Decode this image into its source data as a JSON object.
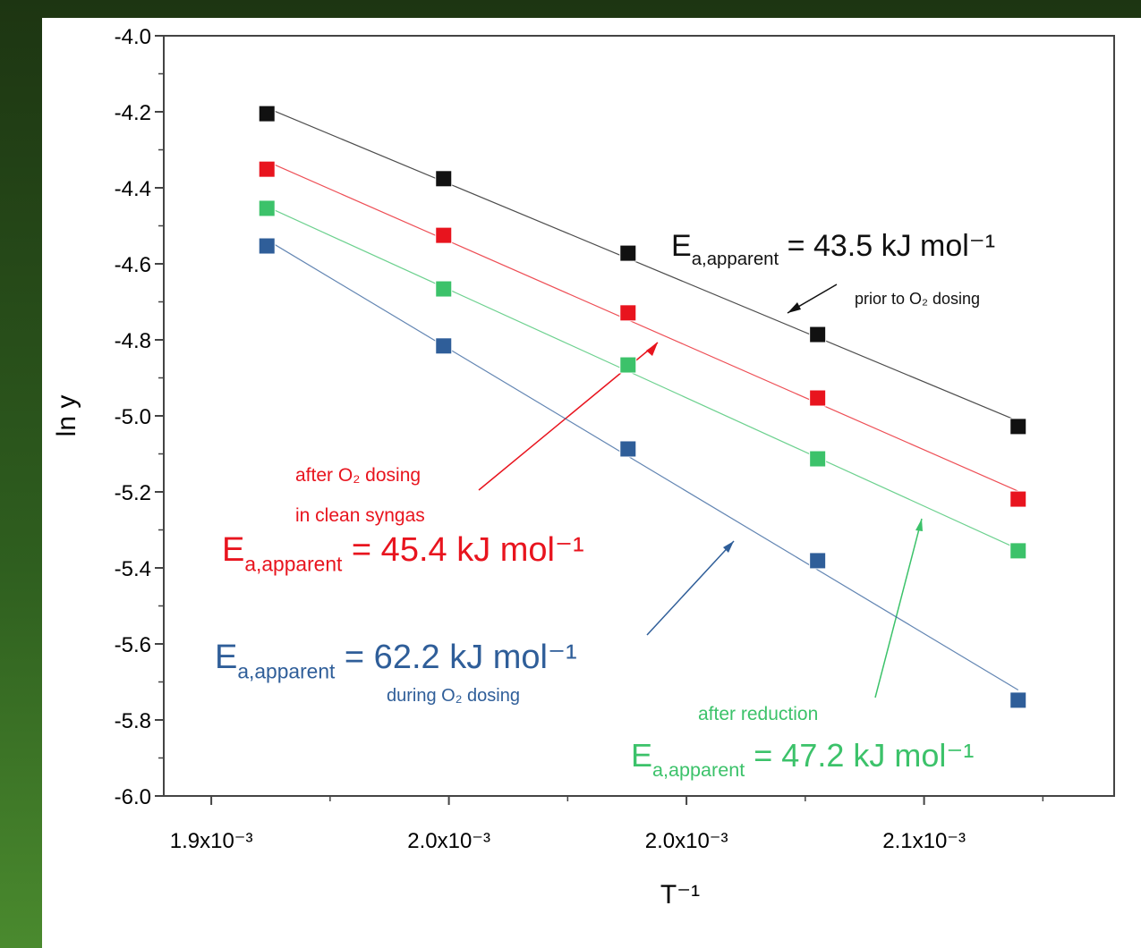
{
  "chart_data": {
    "type": "scatter",
    "xlabel": "T⁻¹",
    "ylabel": "ln y",
    "xlim": [
      0.00189,
      0.00209
    ],
    "xticks": [
      {
        "value": 0.0019,
        "label": "1.9x10⁻³"
      },
      {
        "value": 0.00195,
        "label": "2.0x10⁻³"
      },
      {
        "value": 0.002,
        "label": "2.0x10⁻³"
      },
      {
        "value": 0.00205,
        "label": "2.1x10⁻³"
      }
    ],
    "ylim": [
      -6.0,
      -4.0
    ],
    "yticks": [
      {
        "value": -6,
        "label": "-6.0"
      },
      -5.8,
      -5.6,
      -5.4,
      -5.2,
      {
        "value": -5,
        "label": "-5.0"
      },
      -4.8,
      -4.6,
      -4.4,
      -4.2,
      {
        "value": -4,
        "label": "-4.0"
      }
    ],
    "fit_lines": true,
    "series": [
      {
        "color": "#111111",
        "x": [
          0.0019117,
          0.0019489,
          0.0019877,
          0.0020276,
          0.0020698
        ],
        "values": [
          -4.205,
          -4.376,
          -4.572,
          -4.786,
          -5.028
        ]
      },
      {
        "color": "#e8141e",
        "x": [
          0.0019117,
          0.0019489,
          0.0019877,
          0.0020276,
          0.0020698
        ],
        "values": [
          -4.351,
          -4.525,
          -4.729,
          -4.953,
          -5.219
        ]
      },
      {
        "color": "#3cc26a",
        "x": [
          0.0019117,
          0.0019489,
          0.0019877,
          0.0020276,
          0.0020698
        ],
        "values": [
          -4.454,
          -4.666,
          -4.866,
          -5.113,
          -5.355
        ]
      },
      {
        "color": "#2f5e99",
        "x": [
          0.0019117,
          0.0019489,
          0.0019877,
          0.0020276,
          0.0020698
        ],
        "values": [
          -4.553,
          -4.816,
          -5.087,
          -5.381,
          -5.748
        ]
      }
    ],
    "annotations": [
      {
        "color": "#111111",
        "parts": [
          {
            "text": "E"
          },
          {
            "text": "a,apparent",
            "baseline": "sub"
          },
          {
            "text": " = 43.5 kJ mol⁻¹"
          }
        ]
      },
      {
        "color": "#111111",
        "parts": [
          {
            "text": "prior to O₂ dosing"
          }
        ]
      },
      {
        "color": "#e8141e",
        "parts": [
          {
            "text": "after O₂ dosing"
          }
        ]
      },
      {
        "color": "#e8141e",
        "parts": [
          {
            "text": "in clean syngas"
          }
        ]
      },
      {
        "color": "#e8141e",
        "parts": [
          {
            "text": "E"
          },
          {
            "text": "a,apparent",
            "baseline": "sub"
          },
          {
            "text": " = 45.4 kJ mol⁻¹"
          }
        ]
      },
      {
        "color": "#2f5e99",
        "parts": [
          {
            "text": "E"
          },
          {
            "text": "a,apparent",
            "baseline": "sub"
          },
          {
            "text": " = 62.2 kJ mol⁻¹"
          }
        ]
      },
      {
        "color": "#2f5e99",
        "parts": [
          {
            "text": "during O₂ dosing"
          }
        ]
      },
      {
        "color": "#3cc26a",
        "parts": [
          {
            "text": "after reduction"
          }
        ]
      },
      {
        "color": "#3cc26a",
        "parts": [
          {
            "text": "E"
          },
          {
            "text": "a,apparent",
            "baseline": "sub"
          },
          {
            "text": " = 47.2 kJ mol⁻¹"
          }
        ]
      }
    ]
  }
}
